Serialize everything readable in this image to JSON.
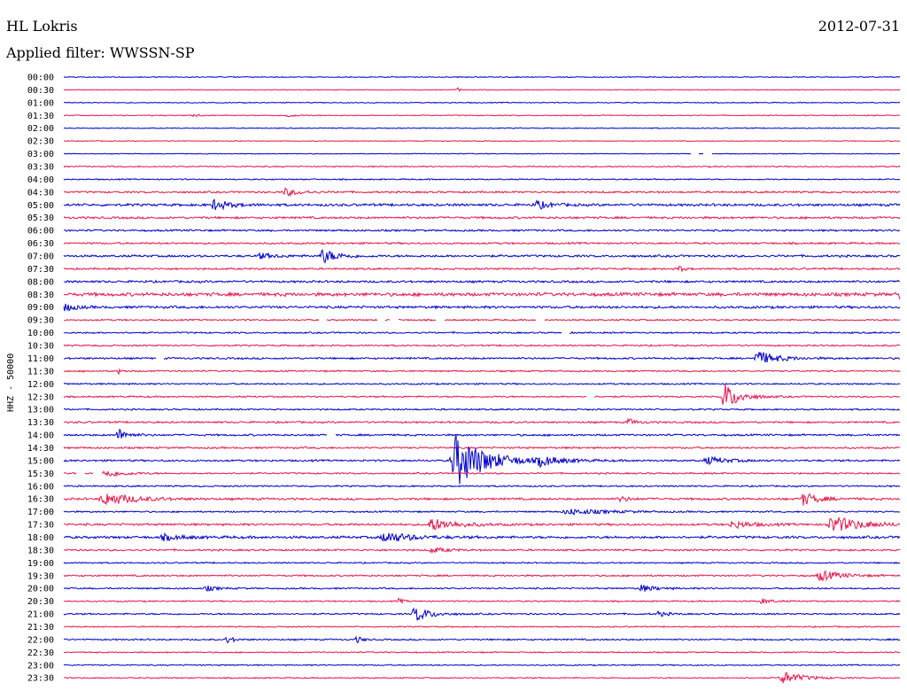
{
  "header": {
    "station": "HL Lokris",
    "date": "2012-07-31",
    "filter": "Applied filter: WWSSN-SP"
  },
  "chart_data": {
    "type": "line",
    "title": "HL Lokris",
    "ylabel": "HHZ - 50000",
    "rows": [
      "00:00",
      "00:30",
      "01:00",
      "01:30",
      "02:00",
      "02:30",
      "03:00",
      "03:30",
      "04:00",
      "04:30",
      "05:00",
      "05:30",
      "06:00",
      "06:30",
      "07:00",
      "07:30",
      "08:00",
      "08:30",
      "09:00",
      "09:30",
      "10:00",
      "10:30",
      "11:00",
      "11:30",
      "12:00",
      "12:30",
      "13:00",
      "13:30",
      "14:00",
      "14:30",
      "15:00",
      "15:30",
      "16:00",
      "16:30",
      "17:00",
      "17:30",
      "18:00",
      "18:30",
      "19:00",
      "19:30",
      "20:00",
      "20:30",
      "21:00",
      "21:30",
      "22:00",
      "22:30",
      "23:00",
      "23:30"
    ],
    "colors": {
      "even": "#0000cc",
      "odd": "#e8174d"
    },
    "noise_level": [
      0.6,
      0.5,
      0.6,
      0.6,
      0.6,
      0.5,
      0.5,
      0.8,
      0.8,
      1.2,
      1.6,
      1.4,
      1.2,
      1.2,
      1.4,
      1.2,
      1.4,
      2.2,
      1.6,
      1.0,
      1.0,
      1.0,
      1.2,
      1.0,
      1.0,
      1.0,
      1.0,
      1.2,
      1.2,
      1.2,
      1.2,
      1.0,
      1.0,
      1.4,
      1.0,
      1.4,
      1.6,
      1.2,
      0.9,
      1.1,
      1.0,
      0.9,
      1.0,
      0.8,
      1.0,
      0.8,
      0.8,
      0.8
    ],
    "events": [
      {
        "row": 1,
        "x": 0.47,
        "amp": 3,
        "dur": 0.003
      },
      {
        "row": 3,
        "x": 0.155,
        "amp": 2,
        "dur": 0.006
      },
      {
        "row": 3,
        "x": 0.265,
        "amp": 2,
        "dur": 0.01
      },
      {
        "row": 9,
        "x": 0.265,
        "amp": 4,
        "dur": 0.015
      },
      {
        "row": 10,
        "x": 0.18,
        "amp": 6,
        "dur": 0.015
      },
      {
        "row": 10,
        "x": 0.565,
        "amp": 5,
        "dur": 0.012
      },
      {
        "row": 14,
        "x": 0.31,
        "amp": 8,
        "dur": 0.015
      },
      {
        "row": 14,
        "x": 0.235,
        "amp": 3,
        "dur": 0.015
      },
      {
        "row": 15,
        "x": 0.735,
        "amp": 4,
        "dur": 0.005
      },
      {
        "row": 17,
        "x": 1.0,
        "amp": 6,
        "dur": 0.01
      },
      {
        "row": 18,
        "x": 0.0,
        "amp": 5,
        "dur": 0.01
      },
      {
        "row": 22,
        "x": 0.83,
        "amp": 8,
        "dur": 0.02
      },
      {
        "row": 23,
        "x": 0.065,
        "amp": 3,
        "dur": 0.004
      },
      {
        "row": 25,
        "x": 0.79,
        "amp": 16,
        "dur": 0.015
      },
      {
        "row": 27,
        "x": 0.675,
        "amp": 4,
        "dur": 0.008
      },
      {
        "row": 28,
        "x": 0.065,
        "amp": 7,
        "dur": 0.01
      },
      {
        "row": 30,
        "x": 0.47,
        "amp": 30,
        "dur": 0.03
      },
      {
        "row": 30,
        "x": 0.57,
        "amp": 5,
        "dur": 0.02
      },
      {
        "row": 30,
        "x": 0.77,
        "amp": 4,
        "dur": 0.02
      },
      {
        "row": 31,
        "x": 0.05,
        "amp": 4,
        "dur": 0.02
      },
      {
        "row": 33,
        "x": 0.05,
        "amp": 7,
        "dur": 0.03
      },
      {
        "row": 33,
        "x": 0.665,
        "amp": 3,
        "dur": 0.01
      },
      {
        "row": 33,
        "x": 0.885,
        "amp": 7,
        "dur": 0.015
      },
      {
        "row": 34,
        "x": 0.605,
        "amp": 3,
        "dur": 0.04
      },
      {
        "row": 35,
        "x": 0.44,
        "amp": 7,
        "dur": 0.025
      },
      {
        "row": 35,
        "x": 0.8,
        "amp": 4,
        "dur": 0.02
      },
      {
        "row": 35,
        "x": 0.92,
        "amp": 9,
        "dur": 0.03
      },
      {
        "row": 36,
        "x": 0.385,
        "amp": 6,
        "dur": 0.025
      },
      {
        "row": 36,
        "x": 0.12,
        "amp": 3,
        "dur": 0.02
      },
      {
        "row": 37,
        "x": 0.44,
        "amp": 3,
        "dur": 0.015
      },
      {
        "row": 39,
        "x": 0.905,
        "amp": 6,
        "dur": 0.02
      },
      {
        "row": 40,
        "x": 0.17,
        "amp": 3,
        "dur": 0.01
      },
      {
        "row": 40,
        "x": 0.69,
        "amp": 4,
        "dur": 0.015
      },
      {
        "row": 41,
        "x": 0.4,
        "amp": 3,
        "dur": 0.005
      },
      {
        "row": 41,
        "x": 0.835,
        "amp": 3,
        "dur": 0.01
      },
      {
        "row": 42,
        "x": 0.42,
        "amp": 9,
        "dur": 0.015
      },
      {
        "row": 42,
        "x": 0.71,
        "amp": 3,
        "dur": 0.01
      },
      {
        "row": 44,
        "x": 0.195,
        "amp": 5,
        "dur": 0.006
      },
      {
        "row": 44,
        "x": 0.35,
        "amp": 4,
        "dur": 0.006
      },
      {
        "row": 47,
        "x": 0.86,
        "amp": 7,
        "dur": 0.02
      }
    ],
    "gaps": [
      {
        "row": 6,
        "x": 0.755
      },
      {
        "row": 6,
        "x": 0.77
      },
      {
        "row": 19,
        "x": 0.31
      },
      {
        "row": 19,
        "x": 0.38
      },
      {
        "row": 19,
        "x": 0.395
      },
      {
        "row": 19,
        "x": 0.45
      },
      {
        "row": 19,
        "x": 0.57
      },
      {
        "row": 20,
        "x": 0.6
      },
      {
        "row": 22,
        "x": 0.115
      },
      {
        "row": 25,
        "x": 0.63
      },
      {
        "row": 28,
        "x": 0.32
      },
      {
        "row": 31,
        "x": 0.02
      },
      {
        "row": 31,
        "x": 0.04
      }
    ]
  }
}
